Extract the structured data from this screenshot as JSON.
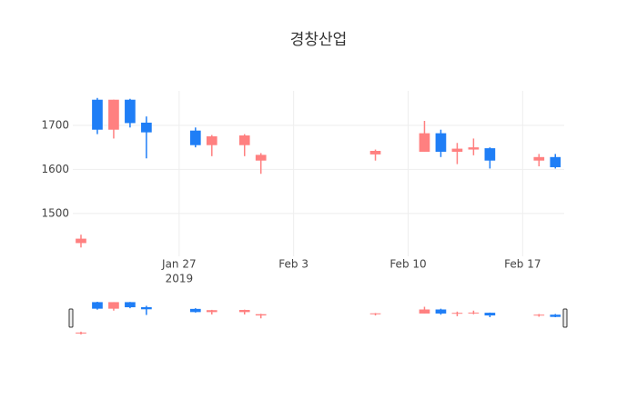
{
  "chart_data": {
    "type": "candlestick",
    "title": "경창산업",
    "x": [
      "2019-01-21",
      "2019-01-22",
      "2019-01-23",
      "2019-01-24",
      "2019-01-25",
      "2019-01-28",
      "2019-01-29",
      "2019-01-31",
      "2019-02-01",
      "2019-02-08",
      "2019-02-11",
      "2019-02-12",
      "2019-02-13",
      "2019-02-14",
      "2019-02-15",
      "2019-02-18",
      "2019-02-19"
    ],
    "open": [
      1433,
      1758,
      1690,
      1758,
      1706,
      1688,
      1655,
      1655,
      1620,
      1634,
      1640,
      1682,
      1640,
      1645,
      1648,
      1620,
      1628
    ],
    "high": [
      1452,
      1762,
      1758,
      1760,
      1720,
      1695,
      1678,
      1680,
      1637,
      1645,
      1710,
      1690,
      1660,
      1670,
      1650,
      1635,
      1635
    ],
    "low": [
      1423,
      1680,
      1670,
      1695,
      1625,
      1650,
      1630,
      1630,
      1590,
      1620,
      1640,
      1628,
      1612,
      1632,
      1602,
      1607,
      1602
    ],
    "close": [
      1443,
      1690,
      1758,
      1705,
      1684,
      1655,
      1675,
      1677,
      1633,
      1642,
      1682,
      1640,
      1647,
      1650,
      1620,
      1628,
      1605
    ],
    "increasing_color": "#ff8080",
    "decreasing_color": "#1f7ef6",
    "xlim": [
      "2019-01-20T12:00",
      "2019-02-19T13:00"
    ],
    "xticks": [
      {
        "value": "2019-01-27",
        "label": "Jan 27"
      },
      {
        "value": "2019-02-03",
        "label": "Feb 3"
      },
      {
        "value": "2019-02-10",
        "label": "Feb 10"
      },
      {
        "value": "2019-02-17",
        "label": "Feb 17"
      }
    ],
    "x_year_label": "2019",
    "ylim": [
      1403,
      1778
    ],
    "yticks": [
      1500,
      1600,
      1700
    ],
    "grid": true,
    "rangeslider": true
  }
}
